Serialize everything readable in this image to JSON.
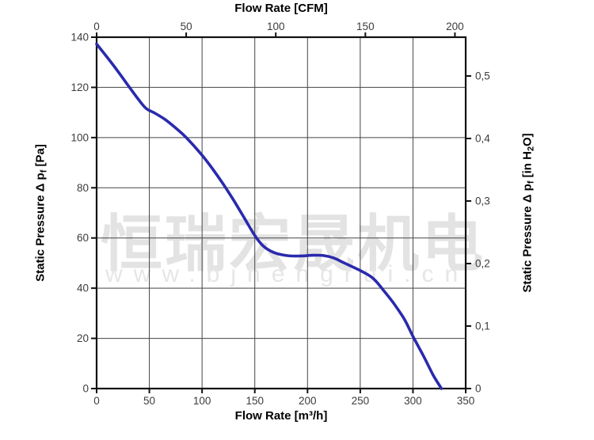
{
  "watermark": {
    "line1": "恒瑞宏晟机电",
    "line2": "www.bjhengrui.cn",
    "color": "#e3e3e3"
  },
  "chart_data": {
    "type": "line",
    "title_top_axis": "Flow Rate [CFM]",
    "title_bottom_axis": "Flow Rate [m³/h]",
    "left_axis": {
      "label_parts": [
        {
          "t": "Static Pressure Δ p"
        },
        {
          "t": "f",
          "sub": true
        },
        {
          "t": " [Pa]"
        }
      ],
      "unit": "Pa",
      "min": 0,
      "max": 140,
      "ticks": [
        0,
        20,
        40,
        60,
        80,
        100,
        120,
        140
      ]
    },
    "right_axis": {
      "label_parts": [
        {
          "t": "Static Pressure Δ p"
        },
        {
          "t": "f",
          "sub": true
        },
        {
          "t": " [in H"
        },
        {
          "t": "2",
          "sub": true
        },
        {
          "t": "O]"
        }
      ],
      "unit": "in H2O",
      "ticks": [
        0,
        0.1,
        0.2,
        0.3,
        0.4,
        0.5
      ],
      "tick_labels": [
        "0",
        "0,1",
        "0,2",
        "0,3",
        "0,4",
        "0,5"
      ],
      "pa_per_unit": 249.09
    },
    "bottom_axis": {
      "unit": "m³/h",
      "min": 0,
      "max": 350,
      "ticks": [
        0,
        50,
        100,
        150,
        200,
        250,
        300,
        350
      ]
    },
    "top_axis": {
      "unit": "CFM",
      "ticks": [
        0,
        50,
        100,
        150,
        200
      ],
      "m3h_per_cfm": 1.699
    },
    "grid": true,
    "series": [
      {
        "name": "static-pressure-curve",
        "color": "#2a2aad",
        "points_m3h_pa": [
          [
            0,
            137.3
          ],
          [
            10,
            132
          ],
          [
            20,
            126.5
          ],
          [
            30,
            120.7
          ],
          [
            40,
            115
          ],
          [
            47,
            111.6
          ],
          [
            55,
            109.8
          ],
          [
            65,
            107.2
          ],
          [
            75,
            103.8
          ],
          [
            85,
            100
          ],
          [
            100,
            93
          ],
          [
            110,
            87.5
          ],
          [
            120,
            81.5
          ],
          [
            130,
            75
          ],
          [
            140,
            68
          ],
          [
            150,
            61
          ],
          [
            158,
            56.8
          ],
          [
            168,
            54.2
          ],
          [
            180,
            53
          ],
          [
            192,
            52.8
          ],
          [
            205,
            53.1
          ],
          [
            215,
            53
          ],
          [
            225,
            52
          ],
          [
            235,
            50
          ],
          [
            250,
            47
          ],
          [
            262,
            44
          ],
          [
            272,
            39.2
          ],
          [
            282,
            33.8
          ],
          [
            292,
            27.5
          ],
          [
            300,
            20.8
          ],
          [
            310,
            13
          ],
          [
            319,
            5.5
          ],
          [
            327,
            0
          ]
        ]
      }
    ],
    "colors": {
      "axis": "#111111",
      "grid": "#454545",
      "tick_label": "#3c3c3c",
      "background": "#ffffff"
    }
  }
}
